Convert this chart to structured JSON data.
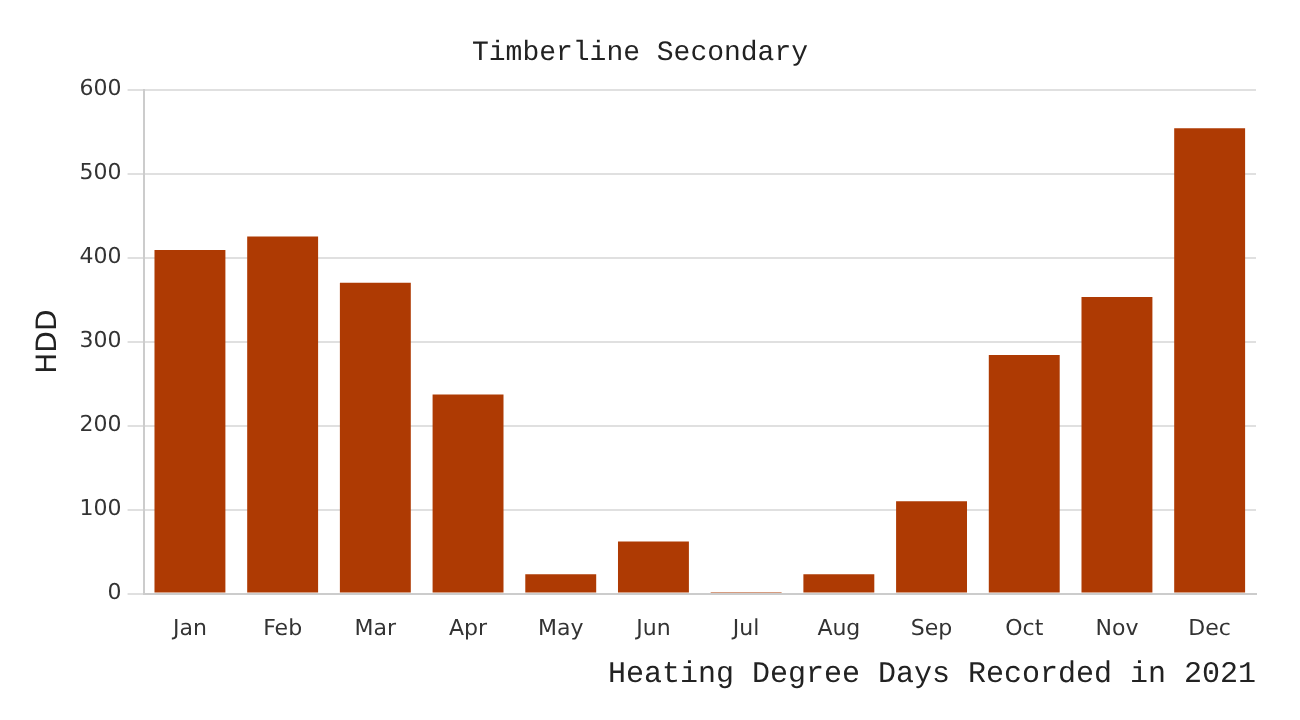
{
  "chart_data": {
    "type": "bar",
    "title": "Timberline Secondary",
    "xlabel": "Heating Degree Days Recorded in 2021",
    "ylabel": "HDD",
    "categories": [
      "Jan",
      "Feb",
      "Mar",
      "Apr",
      "May",
      "Jun",
      "Jul",
      "Aug",
      "Sep",
      "Oct",
      "Nov",
      "Dec"
    ],
    "values": [
      409,
      425,
      370,
      237,
      23,
      62,
      2,
      23,
      110,
      284,
      353,
      554
    ],
    "color": "#ae3a03",
    "ylim": [
      0,
      600
    ],
    "yticks": [
      0,
      100,
      200,
      300,
      400,
      500,
      600
    ],
    "grid": "y",
    "legend": false
  }
}
